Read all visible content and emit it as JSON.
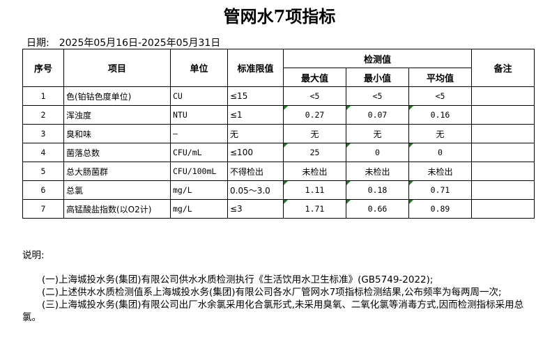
{
  "title": "管网水7项指标",
  "date": {
    "label": "日期:",
    "value": "2025年05月16日-2025年05月31日"
  },
  "headers": {
    "seq": "序号",
    "item": "项目",
    "unit": "单位",
    "limit": "标准限值",
    "measured": "检测值",
    "max": "最大值",
    "min": "最小值",
    "avg": "平均值",
    "remark": "备注"
  },
  "rows": [
    {
      "seq": "1",
      "item": "色(铂钴色度单位)",
      "unit": "CU",
      "limit": "≤15",
      "max": "<5",
      "min": "<5",
      "avg": "<5",
      "remark": "",
      "flags": false
    },
    {
      "seq": "2",
      "item": "浑浊度",
      "unit": "NTU",
      "limit": "≤1",
      "max": "0.27",
      "min": "0.07",
      "avg": "0.16",
      "remark": "",
      "flags": true
    },
    {
      "seq": "3",
      "item": "臭和味",
      "unit": "—",
      "limit": "无",
      "max": "无",
      "min": "无",
      "avg": "无",
      "remark": "",
      "flags": false
    },
    {
      "seq": "4",
      "item": "菌落总数",
      "unit": "CFU/mL",
      "limit": "≤100",
      "max": "25",
      "min": "0",
      "avg": "0",
      "remark": "",
      "flags": true
    },
    {
      "seq": "5",
      "item": "总大肠菌群",
      "unit": "CFU/100mL",
      "limit": "不得检出",
      "max": "未检出",
      "min": "未检出",
      "avg": "未检出",
      "remark": "",
      "flags": false
    },
    {
      "seq": "6",
      "item": "总氯",
      "unit": "mg/L",
      "limit": "0.05～3.0",
      "max": "1.11",
      "min": "0.18",
      "avg": "0.71",
      "remark": "",
      "flags": true
    },
    {
      "seq": "7",
      "item": "高锰酸盐指数(以O2计)",
      "unit": "mg/L",
      "limit": "≤3",
      "max": "1.71",
      "min": "0.66",
      "avg": "0.89",
      "remark": "",
      "flags": true
    }
  ],
  "notes": {
    "label": "说明:",
    "items": [
      "(一)上海城投水务(集团)有限公司供水水质检测执行《生活饮用水卫生标准》(GB5749-2022);",
      "(二)上述供水水质检测值系上海城投水务(集团)有限公司各水厂管网水7项指标检测结果,公布频率为每两周一次;",
      "(三)上海城投水务(集团)有限公司出厂水余氯采用化合氯形式,未采用臭氧、二氧化氯等消毒方式,因而检测指标采用总氯。"
    ]
  },
  "colors": {
    "flag": "#1a7f1a"
  }
}
